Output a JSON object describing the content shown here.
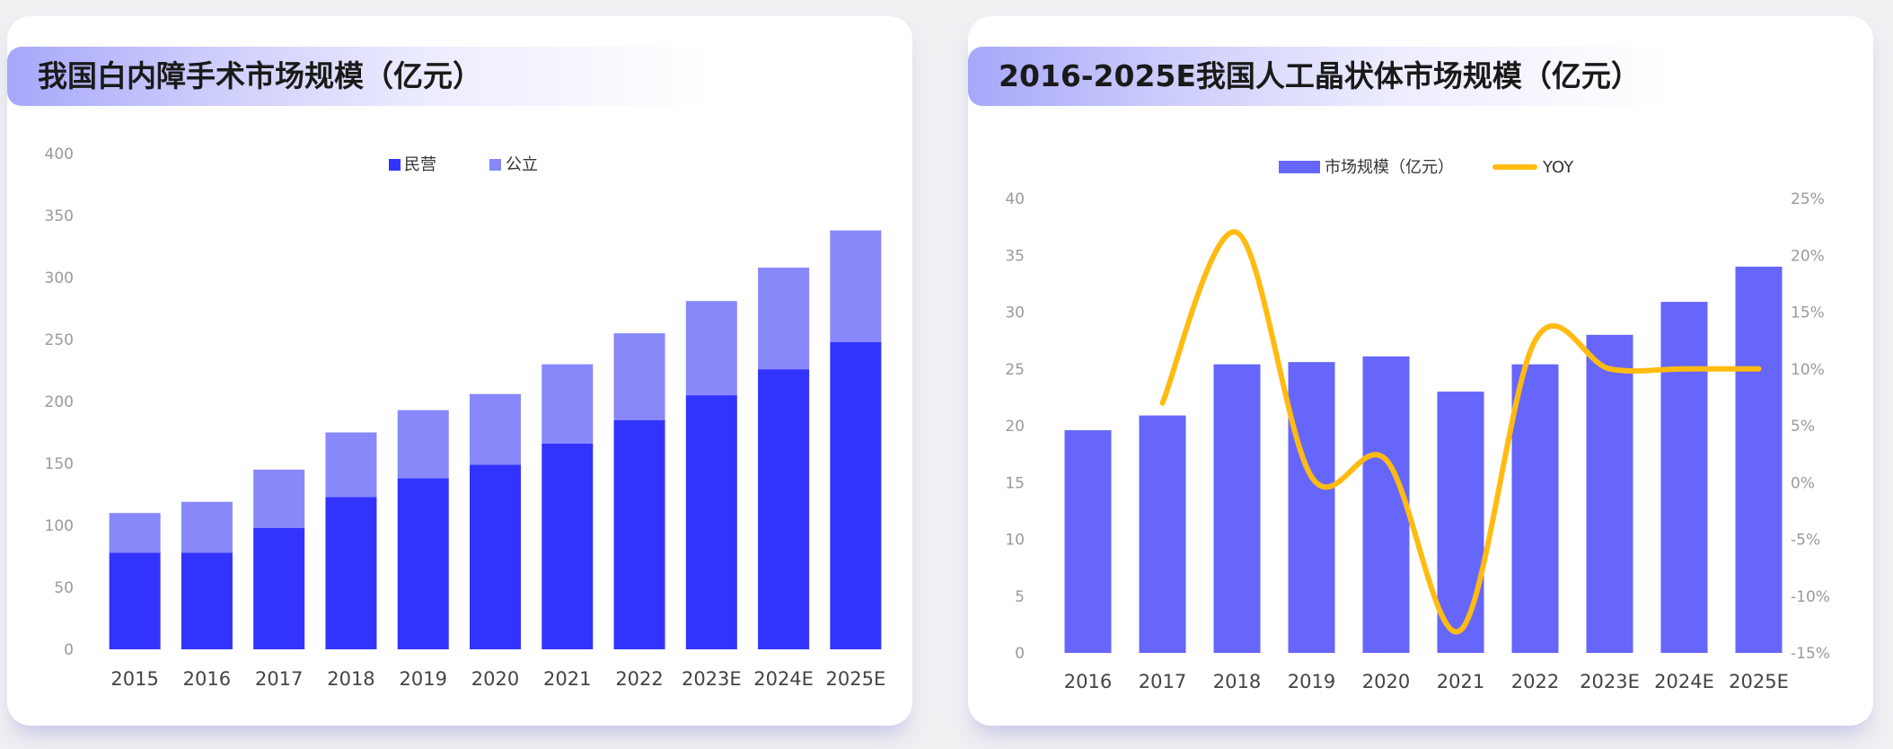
{
  "colors": {
    "private": "#3333ff",
    "public": "#8888fa",
    "market_bar": "#6666fa",
    "yoy_line": "#ffbb11",
    "axis_text": "#9a9a9a",
    "category_text": "#444444"
  },
  "chart_data": [
    {
      "type": "bar",
      "stacked": true,
      "title": "我国白内障手术市场规模（亿元）",
      "categories": [
        "2015",
        "2016",
        "2017",
        "2018",
        "2019",
        "2020",
        "2021",
        "2022",
        "2023E",
        "2024E",
        "2025E"
      ],
      "series": [
        {
          "name": "民营",
          "values": [
            78,
            78,
            98,
            123,
            138,
            149,
            166,
            185,
            205,
            226,
            248
          ]
        },
        {
          "name": "公立",
          "values": [
            32,
            41,
            47,
            52,
            55,
            57,
            64,
            70,
            76,
            82,
            90
          ]
        }
      ],
      "ylim": [
        0,
        400
      ],
      "yticks": [
        "0",
        "50",
        "100",
        "150",
        "200",
        "250",
        "300",
        "350",
        "400"
      ],
      "xlabel": "",
      "ylabel": "",
      "legend": "top-center",
      "grid": false
    },
    {
      "type": "bar",
      "title": "2016-2025E我国人工晶状体市场规模（亿元）",
      "categories": [
        "2016",
        "2017",
        "2018",
        "2019",
        "2020",
        "2021",
        "2022",
        "2023E",
        "2024E",
        "2025E"
      ],
      "series": [
        {
          "name": "市场规模（亿元）",
          "type": "bar",
          "axis": "left",
          "values": [
            19.6,
            20.9,
            25.4,
            25.6,
            26.1,
            23.0,
            25.4,
            28.0,
            30.9,
            34.0
          ]
        },
        {
          "name": "YOY",
          "type": "line",
          "axis": "right",
          "values": [
            null,
            7,
            22,
            0.5,
            2,
            -13,
            12.5,
            10,
            10,
            10
          ]
        }
      ],
      "ylim": [
        0,
        40
      ],
      "yticks": [
        "0",
        "5",
        "10",
        "15",
        "20",
        "25",
        "30",
        "35",
        "40"
      ],
      "y2lim": [
        -15,
        25
      ],
      "y2ticks": [
        "-15%",
        "-10%",
        "-5%",
        "0%",
        "5%",
        "10%",
        "15%",
        "20%",
        "25%"
      ],
      "xlabel": "",
      "ylabel": "",
      "legend": "top-center",
      "grid": false
    }
  ]
}
